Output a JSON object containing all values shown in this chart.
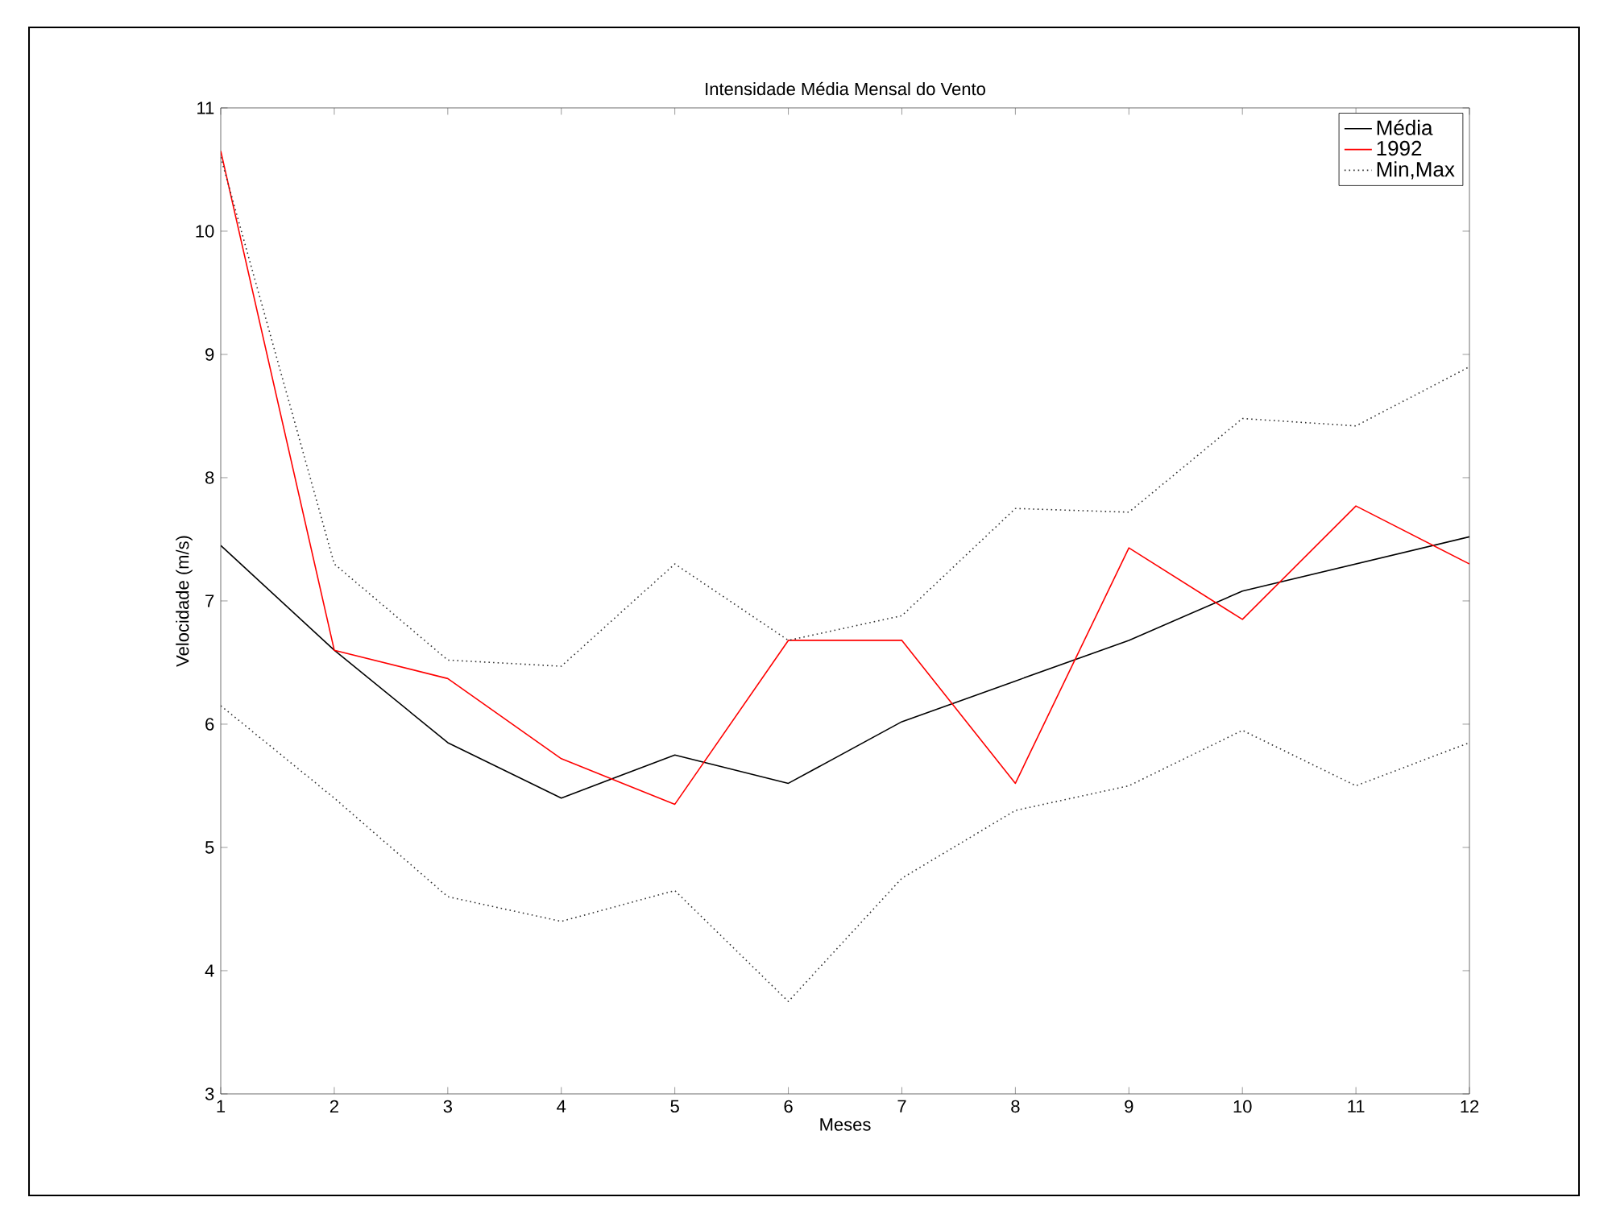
{
  "chart_data": {
    "type": "line",
    "title": "Intensidade Média Mensal do Vento",
    "xlabel": "Meses",
    "ylabel": "Velocidade (m/s)",
    "x": [
      1,
      2,
      3,
      4,
      5,
      6,
      7,
      8,
      9,
      10,
      11,
      12
    ],
    "series": [
      {
        "name": "Média",
        "color": "#000000",
        "line_style": "solid",
        "values": [
          7.45,
          6.6,
          5.85,
          5.4,
          5.75,
          5.52,
          6.02,
          6.35,
          6.68,
          7.08,
          7.3,
          7.52
        ]
      },
      {
        "name": "1992",
        "color": "#ff0000",
        "line_style": "solid",
        "values": [
          10.65,
          6.6,
          6.37,
          5.72,
          5.35,
          6.68,
          6.68,
          5.52,
          7.43,
          6.85,
          7.77,
          7.3
        ]
      },
      {
        "name": "Min,Max",
        "color": "#333333",
        "line_style": "dotted",
        "values": [
          10.6,
          7.3,
          6.52,
          6.47,
          7.3,
          6.68,
          6.88,
          7.75,
          7.72,
          8.48,
          8.42,
          8.9
        ]
      },
      {
        "color": "#333333",
        "line_style": "dotted",
        "values": [
          6.15,
          5.4,
          4.6,
          4.4,
          4.65,
          3.75,
          4.75,
          5.3,
          5.5,
          5.95,
          5.5,
          5.85
        ]
      }
    ],
    "xlim": [
      1,
      12
    ],
    "ylim": [
      3,
      11
    ],
    "xticks": [
      1,
      2,
      3,
      4,
      5,
      6,
      7,
      8,
      9,
      10,
      11,
      12
    ],
    "yticks": [
      3,
      4,
      5,
      6,
      7,
      8,
      9,
      10,
      11
    ],
    "legend": "top right",
    "grid": false,
    "marker": "none"
  }
}
